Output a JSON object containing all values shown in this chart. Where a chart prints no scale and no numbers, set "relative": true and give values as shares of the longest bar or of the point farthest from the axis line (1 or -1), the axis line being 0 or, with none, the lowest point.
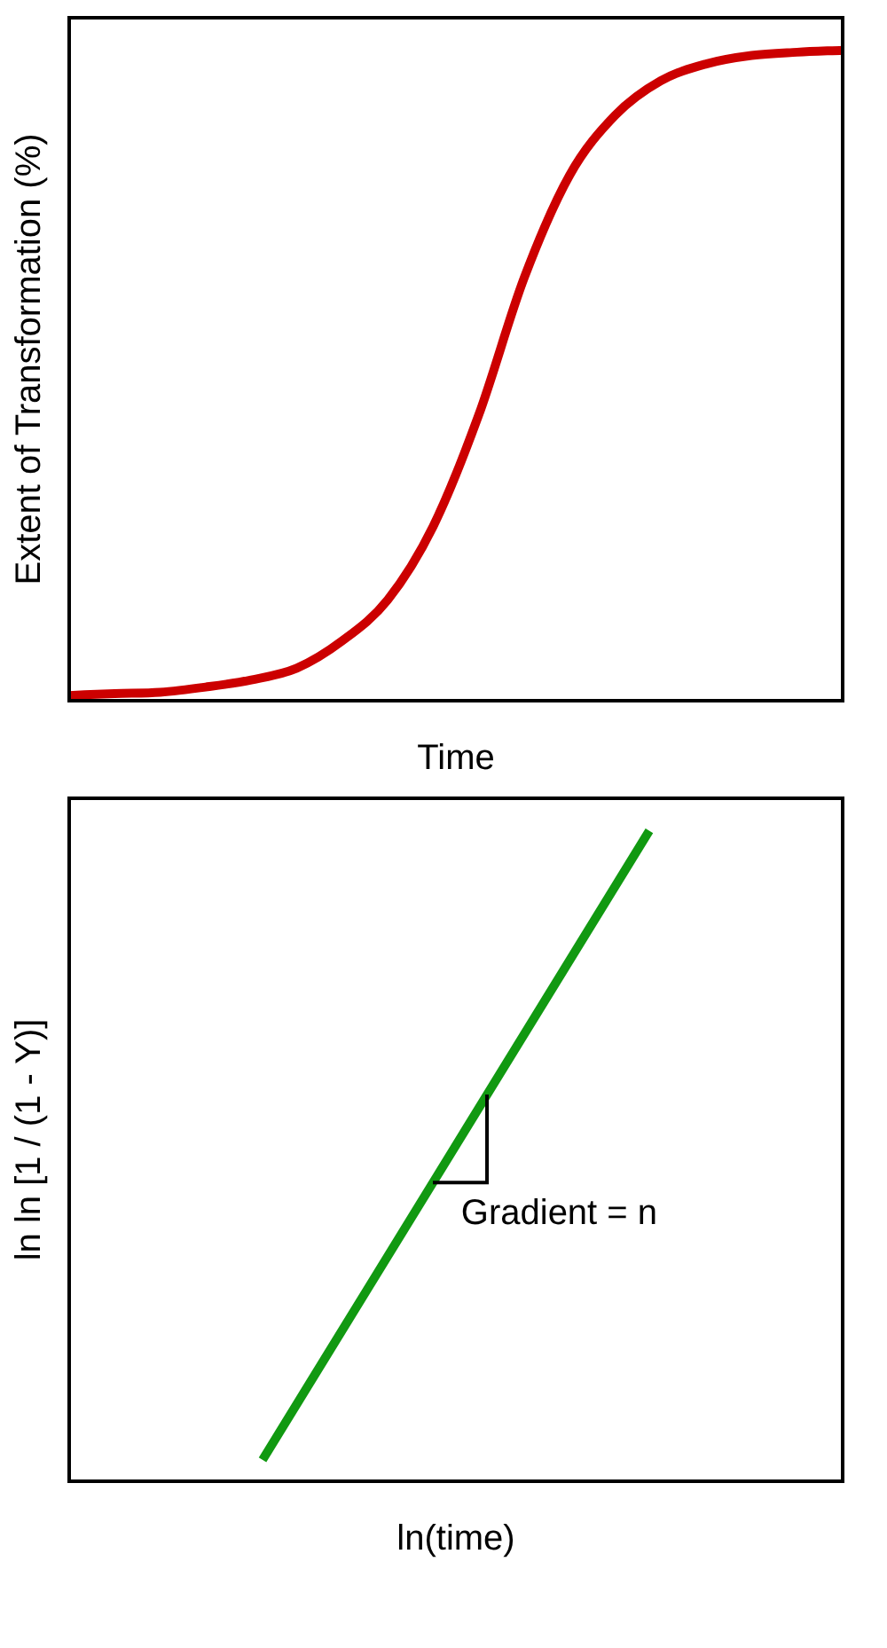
{
  "chart_data": [
    {
      "type": "line",
      "xlabel": "Time",
      "ylabel": "Extent of Transformation (%)",
      "relative": true,
      "marker": "none",
      "categories": [
        null,
        null,
        null,
        null,
        null,
        null,
        null,
        null,
        null,
        null,
        null,
        null,
        null,
        null,
        null,
        null,
        null,
        null
      ],
      "series": [
        {
          "color": "#cc0000",
          "values": [
            0.008,
            0.011,
            0.013,
            0.021,
            0.032,
            0.05,
            0.092,
            0.155,
            0.268,
            0.439,
            0.65,
            0.808,
            0.9,
            0.953,
            0.979,
            0.992,
            0.997,
            1
          ]
        }
      ]
    },
    {
      "type": "line",
      "xlabel": "ln(time)",
      "ylabel": "ln ln [1 / (1 - Y)]",
      "relative": true,
      "marker": "none",
      "categories": [
        null,
        null
      ],
      "series": [
        {
          "color": "#119911",
          "values": [
            0.033,
            1
          ]
        }
      ],
      "annotations": [
        "Gradient = n"
      ]
    }
  ]
}
